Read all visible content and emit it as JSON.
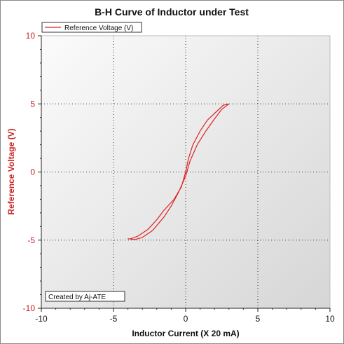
{
  "chart_data": {
    "type": "line",
    "title": "B-H Curve of Inductor under Test",
    "xlabel": "Inductor Current (X 20 mA)",
    "ylabel": "Reference Voltage (V)",
    "xlim": [
      -10,
      10
    ],
    "ylim": [
      -10,
      10
    ],
    "xticks": [
      -10,
      -5,
      0,
      5,
      10
    ],
    "yticks": [
      -10,
      -5,
      0,
      5,
      10
    ],
    "xtick_labels": [
      "-10",
      "-5",
      "0",
      "5",
      "10"
    ],
    "ytick_labels": [
      "-10",
      "-5",
      "0",
      "5",
      "10"
    ],
    "grid": "dotted at major ticks",
    "background": "gradient",
    "legend_position": "top-left",
    "series": [
      {
        "name": "Reference Voltage (V)",
        "color": "#dd2222",
        "x": [
          3.0,
          2.6,
          2.3,
          1.5,
          1.0,
          0.5,
          0.2,
          0.0,
          -0.3,
          -0.8,
          -1.5,
          -2.0,
          -2.6,
          -3.3,
          -3.8,
          -4.0,
          -3.5,
          -3.0,
          -2.3,
          -1.5,
          -1.0,
          -0.5,
          0.0,
          0.3,
          0.8,
          1.4,
          2.0,
          2.5,
          3.0
        ],
        "y": [
          5.0,
          4.9,
          4.6,
          3.8,
          3.0,
          2.0,
          1.0,
          0.0,
          -1.1,
          -2.0,
          -2.8,
          -3.5,
          -4.2,
          -4.7,
          -4.9,
          -4.9,
          -4.95,
          -4.8,
          -4.3,
          -3.3,
          -2.5,
          -1.5,
          -0.3,
          0.8,
          2.0,
          3.0,
          3.9,
          4.6,
          5.0
        ]
      }
    ],
    "annotation": "Created by Aj-ATE"
  }
}
